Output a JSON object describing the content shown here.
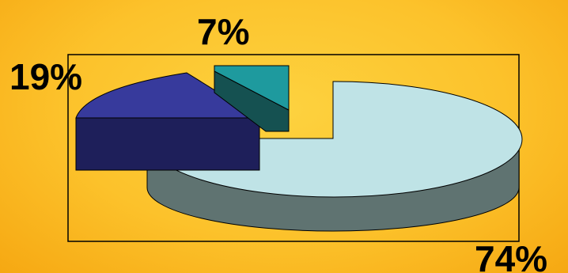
{
  "chart_data": {
    "type": "pie",
    "style": "3d-exploded",
    "slices": [
      {
        "label": "74%",
        "value": 74,
        "top_color": "#bfe3e6",
        "side_color": "#5f7371"
      },
      {
        "label": "19%",
        "value": 19,
        "top_color": "#373a9c",
        "side_color": "#1e1f5a"
      },
      {
        "label": "7%",
        "value": 7,
        "top_color": "#1e9a9e",
        "side_color": "#155151"
      }
    ],
    "legend": "none",
    "grid": false,
    "frame": true
  }
}
